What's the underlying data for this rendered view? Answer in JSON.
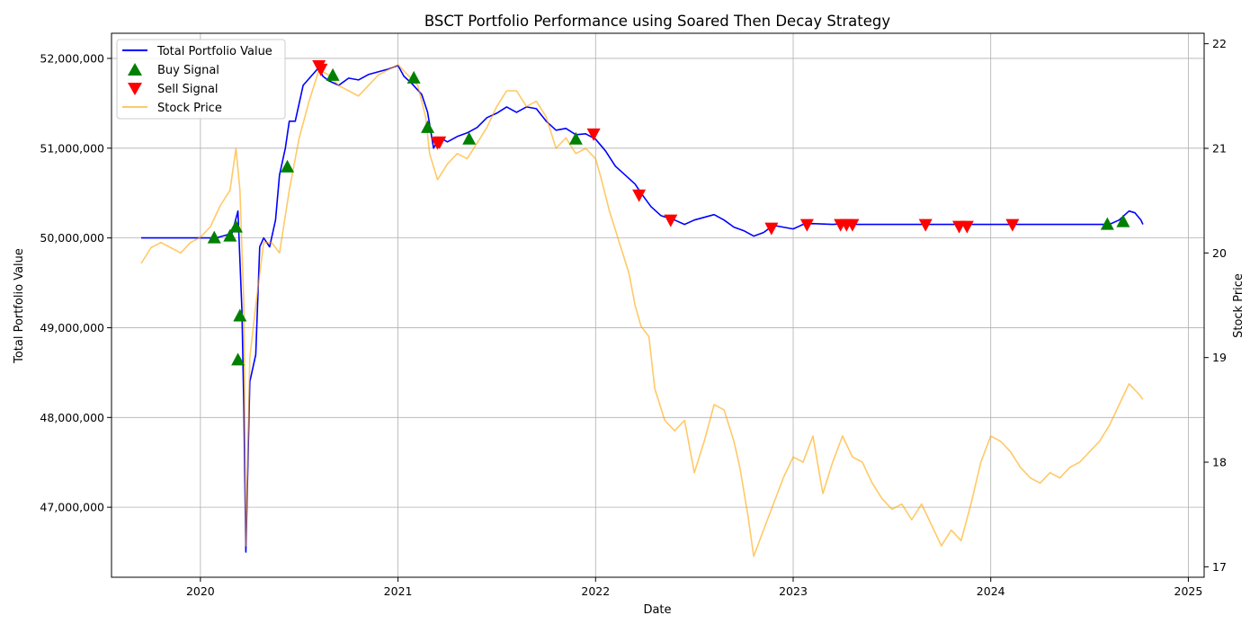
{
  "chart_data": {
    "type": "line",
    "title": "BSCT Portfolio Performance using Soared Then Decay Strategy",
    "xlabel": "Date",
    "ylabel_left": "Total Portfolio Value",
    "ylabel_right": "Stock Price",
    "xlim": [
      2019.55,
      2025.08
    ],
    "ylim_left": [
      46220000,
      52280000
    ],
    "ylim_right": [
      16.9,
      22.1
    ],
    "x_ticks": [
      2020,
      2021,
      2022,
      2023,
      2024,
      2025
    ],
    "x_tick_labels": [
      "2020",
      "2021",
      "2022",
      "2023",
      "2024",
      "2025"
    ],
    "y_left_ticks": [
      47000000,
      48000000,
      49000000,
      50000000,
      51000000,
      52000000
    ],
    "y_left_tick_labels": [
      "47,000,000",
      "48,000,000",
      "49,000,000",
      "50,000,000",
      "51,000,000",
      "52,000,000"
    ],
    "y_right_ticks": [
      17,
      18,
      19,
      20,
      21,
      22
    ],
    "y_right_tick_labels": [
      "17",
      "18",
      "19",
      "20",
      "21",
      "22"
    ],
    "grid": true,
    "legend_position": "top-left",
    "legend": [
      {
        "label": "Total Portfolio Value",
        "kind": "line",
        "color": "#0000ff"
      },
      {
        "label": "Buy Signal",
        "kind": "marker-up",
        "color": "#008000"
      },
      {
        "label": "Sell Signal",
        "kind": "marker-down",
        "color": "#ff0000"
      },
      {
        "label": "Stock Price",
        "kind": "line",
        "color": "#ffa500"
      }
    ],
    "series": [
      {
        "name": "Total Portfolio Value",
        "axis": "left",
        "color": "#0000ff",
        "x": [
          2019.7,
          2020.0,
          2020.08,
          2020.16,
          2020.19,
          2020.21,
          2020.22,
          2020.23,
          2020.25,
          2020.28,
          2020.3,
          2020.32,
          2020.35,
          2020.38,
          2020.4,
          2020.43,
          2020.45,
          2020.48,
          2020.52,
          2020.56,
          2020.6,
          2020.62,
          2020.65,
          2020.7,
          2020.75,
          2020.8,
          2020.85,
          2020.9,
          2020.95,
          2021.0,
          2021.03,
          2021.07,
          2021.12,
          2021.15,
          2021.18,
          2021.21,
          2021.25,
          2021.3,
          2021.35,
          2021.4,
          2021.45,
          2021.5,
          2021.55,
          2021.6,
          2021.65,
          2021.7,
          2021.75,
          2021.8,
          2021.85,
          2021.9,
          2021.95,
          2022.0,
          2022.05,
          2022.1,
          2022.15,
          2022.2,
          2022.23,
          2022.28,
          2022.33,
          2022.4,
          2022.45,
          2022.5,
          2022.55,
          2022.6,
          2022.65,
          2022.7,
          2022.75,
          2022.8,
          2022.85,
          2022.9,
          2022.95,
          2023.0,
          2023.05,
          2023.1,
          2023.2,
          2023.27,
          2023.3,
          2023.4,
          2023.6,
          2023.8,
          2024.0,
          2024.2,
          2024.4,
          2024.55,
          2024.6,
          2024.65,
          2024.7,
          2024.73,
          2024.76,
          2024.77
        ],
        "values": [
          50000000,
          50000000,
          50000000,
          50050000,
          50300000,
          49200000,
          48100000,
          46500000,
          48400000,
          48700000,
          49900000,
          50000000,
          49900000,
          50200000,
          50700000,
          51000000,
          51300000,
          51300000,
          51700000,
          51800000,
          51900000,
          51800000,
          51750000,
          51700000,
          51780000,
          51760000,
          51820000,
          51850000,
          51880000,
          51920000,
          51800000,
          51720000,
          51600000,
          51400000,
          51000000,
          51120000,
          51070000,
          51130000,
          51170000,
          51230000,
          51340000,
          51390000,
          51460000,
          51400000,
          51460000,
          51440000,
          51300000,
          51200000,
          51220000,
          51150000,
          51160000,
          51100000,
          50970000,
          50800000,
          50700000,
          50600000,
          50500000,
          50350000,
          50250000,
          50200000,
          50150000,
          50200000,
          50230000,
          50260000,
          50200000,
          50120000,
          50080000,
          50020000,
          50060000,
          50140000,
          50120000,
          50100000,
          50150000,
          50160000,
          50150000,
          50160000,
          50150000,
          50150000,
          50150000,
          50150000,
          50150000,
          50150000,
          50150000,
          50150000,
          50150000,
          50200000,
          50300000,
          50280000,
          50200000,
          50150000
        ]
      },
      {
        "name": "Stock Price",
        "axis": "right",
        "color": "#ffa500",
        "x": [
          2019.7,
          2019.75,
          2019.8,
          2019.85,
          2019.9,
          2019.95,
          2020.0,
          2020.05,
          2020.1,
          2020.15,
          2020.18,
          2020.2,
          2020.22,
          2020.23,
          2020.25,
          2020.28,
          2020.32,
          2020.36,
          2020.4,
          2020.45,
          2020.5,
          2020.55,
          2020.6,
          2020.65,
          2020.7,
          2020.75,
          2020.8,
          2020.85,
          2020.9,
          2020.95,
          2021.0,
          2021.05,
          2021.1,
          2021.14,
          2021.16,
          2021.2,
          2021.25,
          2021.3,
          2021.35,
          2021.4,
          2021.45,
          2021.5,
          2021.55,
          2021.6,
          2021.65,
          2021.7,
          2021.75,
          2021.8,
          2021.85,
          2021.9,
          2021.95,
          2022.0,
          2022.03,
          2022.07,
          2022.12,
          2022.17,
          2022.2,
          2022.23,
          2022.27,
          2022.3,
          2022.35,
          2022.4,
          2022.45,
          2022.5,
          2022.55,
          2022.6,
          2022.65,
          2022.7,
          2022.73,
          2022.77,
          2022.8,
          2022.85,
          2022.9,
          2022.95,
          2023.0,
          2023.05,
          2023.1,
          2023.15,
          2023.2,
          2023.25,
          2023.3,
          2023.35,
          2023.4,
          2023.45,
          2023.5,
          2023.55,
          2023.6,
          2023.65,
          2023.7,
          2023.75,
          2023.8,
          2023.85,
          2023.9,
          2023.95,
          2024.0,
          2024.05,
          2024.1,
          2024.15,
          2024.2,
          2024.25,
          2024.3,
          2024.35,
          2024.4,
          2024.45,
          2024.5,
          2024.55,
          2024.6,
          2024.65,
          2024.7,
          2024.75,
          2024.77
        ],
        "values": [
          19.9,
          20.05,
          20.1,
          20.05,
          20.0,
          20.1,
          20.15,
          20.25,
          20.45,
          20.6,
          21.0,
          20.6,
          19.5,
          17.2,
          19.0,
          19.5,
          20.1,
          20.1,
          20.0,
          20.6,
          21.1,
          21.45,
          21.75,
          21.7,
          21.6,
          21.55,
          21.5,
          21.6,
          21.7,
          21.75,
          21.8,
          21.7,
          21.6,
          21.3,
          20.95,
          20.7,
          20.85,
          20.95,
          20.9,
          21.05,
          21.2,
          21.4,
          21.55,
          21.55,
          21.4,
          21.45,
          21.3,
          21.0,
          21.1,
          20.95,
          21.0,
          20.9,
          20.7,
          20.4,
          20.1,
          19.8,
          19.5,
          19.3,
          19.2,
          18.7,
          18.4,
          18.3,
          18.4,
          17.9,
          18.2,
          18.55,
          18.5,
          18.2,
          17.95,
          17.5,
          17.1,
          17.35,
          17.6,
          17.85,
          18.05,
          18.0,
          18.25,
          17.7,
          18.0,
          18.25,
          18.05,
          18.0,
          17.8,
          17.65,
          17.55,
          17.6,
          17.45,
          17.6,
          17.4,
          17.2,
          17.35,
          17.25,
          17.6,
          18.0,
          18.25,
          18.2,
          18.1,
          17.95,
          17.85,
          17.8,
          17.9,
          17.85,
          17.95,
          18.0,
          18.1,
          18.2,
          18.35,
          18.55,
          18.75,
          18.65,
          18.6
        ]
      }
    ],
    "buy_signals": {
      "name": "Buy Signal",
      "color": "#008000",
      "x": [
        2020.07,
        2020.15,
        2020.18,
        2020.19,
        2020.2,
        2020.44,
        2020.67,
        2021.08,
        2021.15,
        2021.36,
        2021.9,
        2024.59,
        2024.67
      ],
      "values": [
        50000000,
        50020000,
        50120000,
        48640000,
        49130000,
        50790000,
        51810000,
        51780000,
        51230000,
        51100000,
        51100000,
        50150000,
        50180000
      ]
    },
    "sell_signals": {
      "name": "Sell Signal",
      "color": "#ff0000",
      "x": [
        2020.6,
        2020.61,
        2021.2,
        2021.21,
        2021.99,
        2022.22,
        2022.38,
        2022.89,
        2023.07,
        2023.24,
        2023.27,
        2023.3,
        2023.67,
        2023.84,
        2023.88,
        2024.11
      ],
      "values": [
        51920000,
        51880000,
        51060000,
        51070000,
        51160000,
        50480000,
        50200000,
        50110000,
        50150000,
        50150000,
        50150000,
        50150000,
        50150000,
        50130000,
        50130000,
        50150000
      ]
    }
  }
}
